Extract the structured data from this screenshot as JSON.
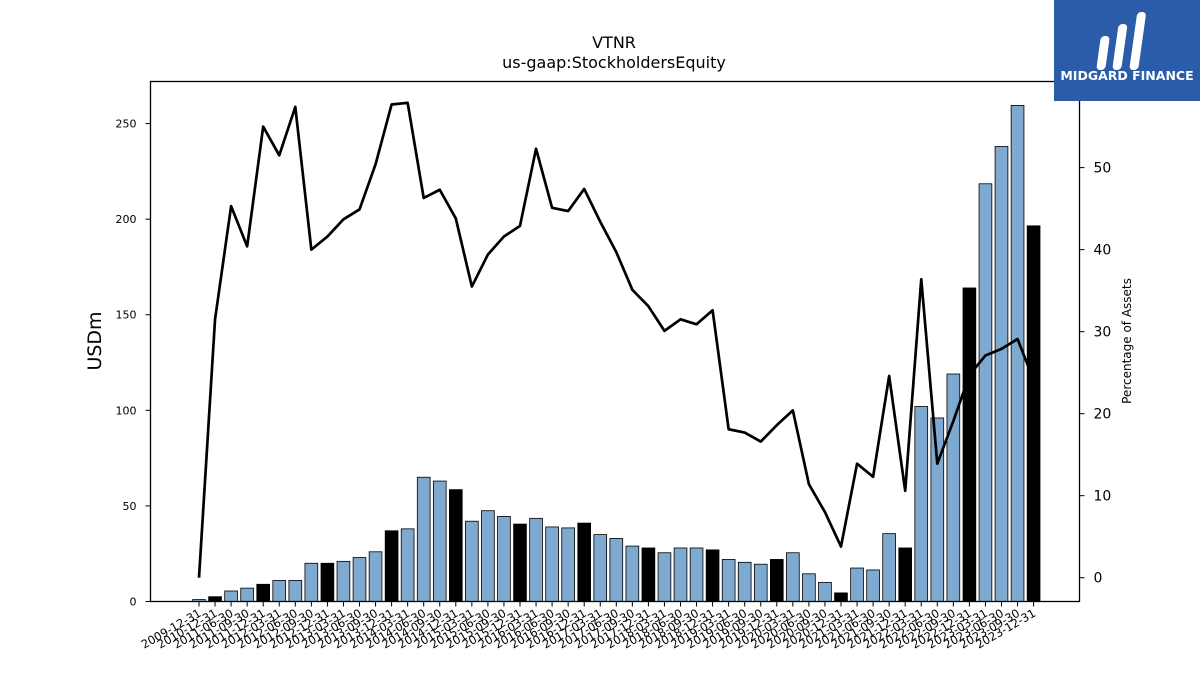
{
  "chart_data": {
    "type": "bar",
    "title": "VTNR",
    "subtitle": "us-gaap:StockholdersEquity",
    "ylabel": "USDm",
    "y2label": "Percentage of Assets",
    "ylim": [
      0,
      272
    ],
    "y2lim": [
      -2.9,
      60.5
    ],
    "yticks": [
      0,
      50,
      100,
      150,
      200,
      250
    ],
    "y2ticks": [
      0,
      10,
      20,
      30,
      40,
      50
    ],
    "legend": "none",
    "grid": false,
    "categories": [
      "2009-12-31",
      "2010-12-31",
      "2011-06-30",
      "2011-09-30",
      "2011-12-31",
      "2012-03-31",
      "2012-06-30",
      "2012-09-30",
      "2012-12-31",
      "2013-03-31",
      "2013-06-30",
      "2013-09-30",
      "2013-12-31",
      "2014-03-31",
      "2014-06-30",
      "2014-09-30",
      "2014-12-31",
      "2015-03-31",
      "2015-06-30",
      "2015-09-30",
      "2015-12-31",
      "2016-03-31",
      "2016-06-30",
      "2016-09-30",
      "2016-12-31",
      "2017-03-31",
      "2017-06-30",
      "2017-09-30",
      "2017-12-31",
      "2018-03-31",
      "2018-06-30",
      "2018-09-30",
      "2018-12-31",
      "2019-03-31",
      "2019-06-30",
      "2019-09-30",
      "2019-12-31",
      "2020-03-31",
      "2020-06-30",
      "2020-09-30",
      "2020-12-31",
      "2021-03-31",
      "2021-06-30",
      "2021-09-30",
      "2021-12-31",
      "2022-03-31",
      "2022-06-30",
      "2022-09-30",
      "2022-12-31",
      "2023-03-31",
      "2023-06-30",
      "2023-09-30",
      "2023-12-31"
    ],
    "tick_labels": [
      "2009-12-31",
      "2010-12-31",
      "2011-06-30",
      "2011-09-30",
      "2011-12-31",
      "2012-03-31",
      "2012-06-30",
      "2012-09-30",
      "2012-12-31",
      "2013-03-31",
      "2013-06-30",
      "2013-09-30",
      "2013-12-31",
      "2014-03-31",
      "2014-06-30",
      "2014-09-30",
      "2014-12-31",
      "2015-03-31",
      "2015-06-30",
      "2015-09-30",
      "2015-12-31",
      "2016-03-31",
      "2016-06-30",
      "2016-09-30",
      "2016-12-31",
      "2017-03-31",
      "2017-06-30",
      "2017-09-30",
      "2017-12-31",
      "2018-03-31",
      "2018-06-30",
      "2018-09-30",
      "2018-12-31",
      "2019-03-31",
      "2019-06-30",
      "2019-09-30",
      "2019-12-31",
      "2020-03-31",
      "2020-06-30",
      "2020-09-30",
      "2020-12-31",
      "2021-03-31",
      "2021-06-30",
      "2021-09-30",
      "2021-12-31",
      "2022-03-31",
      "2022-06-30",
      "2022-09-30",
      "2022-12-31",
      "2023-03-31",
      "2023-06-30",
      "2023-09-30",
      "2023-12-31"
    ],
    "series": [
      {
        "axis": "left",
        "type": "bar",
        "values": [
          1,
          2.5,
          5.5,
          7,
          9,
          11,
          11,
          20,
          20,
          21,
          23,
          26,
          37,
          38,
          65,
          63,
          58.5,
          42,
          47.5,
          44.5,
          40.5,
          43.5,
          39,
          38.5,
          41,
          35,
          33,
          29,
          28,
          25.5,
          28,
          28,
          27,
          22,
          20.5,
          19.5,
          22,
          25.5,
          14.5,
          10,
          4.5,
          17.5,
          16.5,
          35.5,
          28,
          102,
          96,
          119,
          164,
          218.5,
          238,
          259.5,
          196.5
        ],
        "color_light": "#7eaad0",
        "color_dark": "#000000",
        "colors": [
          "L",
          "D",
          "L",
          "L",
          "D",
          "L",
          "L",
          "L",
          "D",
          "L",
          "L",
          "L",
          "D",
          "L",
          "L",
          "L",
          "D",
          "L",
          "L",
          "L",
          "D",
          "L",
          "L",
          "L",
          "D",
          "L",
          "L",
          "L",
          "D",
          "L",
          "L",
          "L",
          "D",
          "L",
          "L",
          "L",
          "D",
          "L",
          "L",
          "L",
          "D",
          "L",
          "L",
          "L",
          "D",
          "L",
          "L",
          "L",
          "D",
          "L",
          "L",
          "L",
          "D"
        ]
      },
      {
        "axis": "right",
        "type": "line",
        "color": "#000000",
        "values": [
          0,
          31.5,
          45.3,
          40.4,
          55,
          51.5,
          57.4,
          40,
          41.6,
          43.7,
          44.9,
          50.4,
          57.7,
          57.9,
          46.3,
          47.3,
          43.8,
          35.5,
          39.4,
          41.6,
          42.9,
          52.3,
          45.1,
          44.7,
          47.4,
          43.4,
          39.7,
          35.1,
          33.1,
          30.1,
          31.5,
          30.9,
          32.6,
          18.1,
          17.7,
          16.6,
          18.6,
          20.4,
          11.4,
          8,
          3.8,
          13.9,
          12.3,
          24.6,
          10.6,
          36.4,
          13.9,
          19.1,
          24.7,
          27.1,
          27.9,
          29.1,
          24.1
        ]
      }
    ]
  },
  "logo": {
    "name": "MIDGARD FINANCE",
    "bg_color": "#2a5caa",
    "text_color": "#ffffff"
  }
}
